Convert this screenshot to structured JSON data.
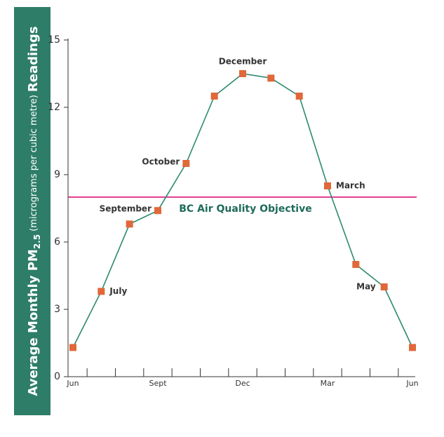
{
  "chart_data": {
    "type": "line",
    "title": {
      "main": "Average Monthly PM",
      "subscript": "2.5",
      "units": "(micrograms per cubic metre)",
      "end": "Readings"
    },
    "categories": [
      "Jun",
      null,
      null,
      "Sept",
      null,
      null,
      "Dec",
      null,
      null,
      "Mar",
      null,
      null,
      "Jun"
    ],
    "values": [
      1.3,
      3.8,
      6.8,
      7.4,
      9.5,
      12.5,
      13.5,
      13.3,
      12.5,
      8.5,
      5,
      4,
      1.3
    ],
    "point_labels": [
      null,
      "July",
      null,
      "September",
      "October",
      null,
      "December",
      null,
      null,
      "March",
      null,
      "May",
      null
    ],
    "line_color": "#2e8a6e",
    "marker_color": "#e0683a",
    "title_band_color": "#2e7d68",
    "reference_line": {
      "value": 8,
      "label": "BC Air Quality Objective",
      "color": "#d6006f",
      "label_color": "#1e6b5a"
    },
    "ylim": [
      0,
      15
    ],
    "yticks": [
      0,
      3,
      6,
      9,
      12,
      15
    ]
  }
}
